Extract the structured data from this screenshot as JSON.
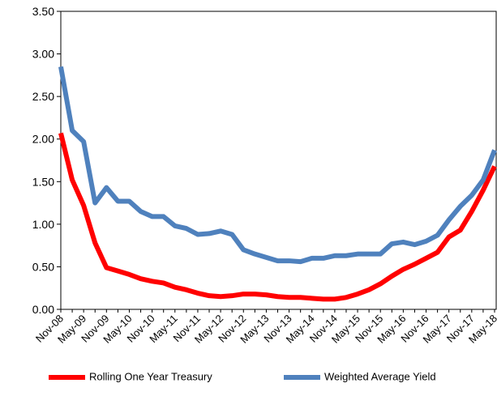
{
  "chart_data": {
    "type": "line",
    "categories": [
      "Nov-08",
      null,
      "May-09",
      null,
      "Nov-09",
      null,
      "May-10",
      null,
      "Nov-10",
      null,
      "May-11",
      null,
      "Nov-11",
      null,
      "May-12",
      null,
      "Nov-12",
      null,
      "May-13",
      null,
      "Nov-13",
      null,
      "May-14",
      null,
      "Nov-14",
      null,
      "May-15",
      null,
      "Nov-15",
      null,
      "May-16",
      null,
      "Nov-16",
      null,
      "May-17",
      null,
      "Nov-17",
      null,
      "May-18"
    ],
    "series": [
      {
        "name": "Rolling One Year Treasury",
        "color": "#ff0000",
        "values": [
          2.07,
          1.52,
          1.22,
          0.78,
          0.49,
          0.45,
          0.41,
          0.36,
          0.33,
          0.31,
          0.26,
          0.23,
          0.19,
          0.16,
          0.15,
          0.16,
          0.18,
          0.18,
          0.17,
          0.15,
          0.14,
          0.14,
          0.13,
          0.12,
          0.12,
          0.14,
          0.18,
          0.23,
          0.3,
          0.39,
          0.47,
          0.53,
          0.6,
          0.67,
          0.85,
          0.93,
          1.15,
          1.4,
          1.68
        ]
      },
      {
        "name": "Weighted Average Yield",
        "color": "#4f81bd",
        "values": [
          2.85,
          2.1,
          1.97,
          1.25,
          1.43,
          1.27,
          1.27,
          1.15,
          1.09,
          1.09,
          0.98,
          0.95,
          0.88,
          0.89,
          0.92,
          0.88,
          0.7,
          0.65,
          0.61,
          0.57,
          0.57,
          0.56,
          0.6,
          0.6,
          0.63,
          0.63,
          0.65,
          0.65,
          0.65,
          0.77,
          0.79,
          0.76,
          0.8,
          0.87,
          1.05,
          1.21,
          1.34,
          1.52,
          1.87
        ]
      }
    ],
    "ylim": [
      0,
      3.5
    ],
    "yticks": [
      {
        "value": 0,
        "label": "0.00"
      },
      {
        "value": 0.5,
        "label": "0.50"
      },
      {
        "value": 1,
        "label": "1.00"
      },
      {
        "value": 1.5,
        "label": "1.50"
      },
      {
        "value": 2,
        "label": "2.00"
      },
      {
        "value": 2.5,
        "label": "2.50"
      },
      {
        "value": 3,
        "label": "3.00"
      },
      {
        "value": 3.5,
        "label": "3.50"
      }
    ],
    "legend": "bottom"
  }
}
